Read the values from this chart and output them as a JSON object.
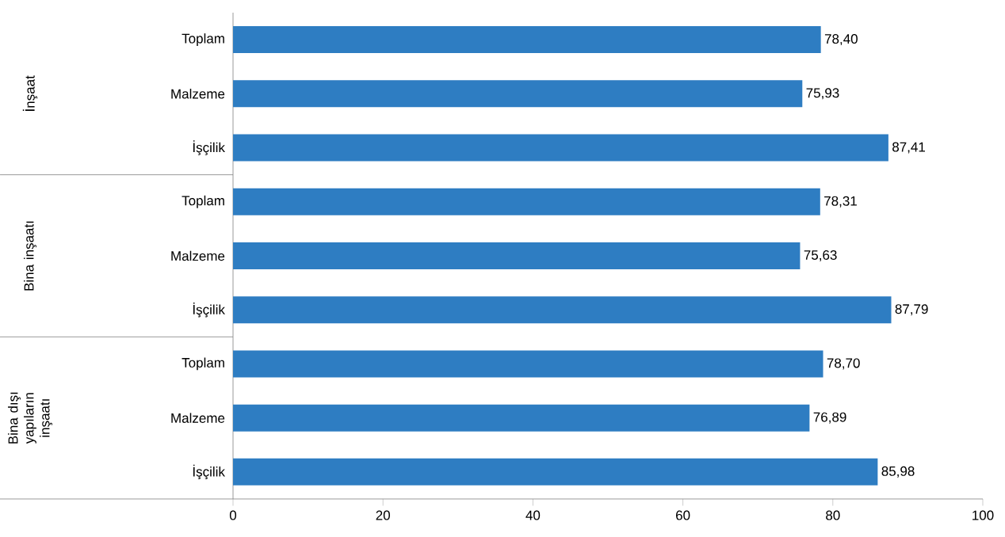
{
  "chart_data": {
    "type": "bar",
    "orientation": "horizontal",
    "categories": [
      "Toplam",
      "Malzeme",
      "İşçilik",
      "Toplam",
      "Malzeme",
      "İşçilik",
      "Toplam",
      "Malzeme",
      "İşçilik"
    ],
    "values": [
      78.4,
      75.93,
      87.41,
      78.31,
      75.63,
      87.79,
      78.7,
      76.89,
      85.98
    ],
    "value_labels": [
      "78,40",
      "75,93",
      "87,41",
      "78,31",
      "75,63",
      "87,79",
      "78,70",
      "76,89",
      "85,98"
    ],
    "color": "#2e7dc2",
    "xlim": [
      0,
      100
    ],
    "xticks": [
      0,
      20,
      40,
      60,
      80,
      100
    ],
    "grid": false,
    "annotations": [
      "İnşaat",
      "Bina inşaatı",
      "Bina dışı yapıların inşaatı"
    ]
  }
}
